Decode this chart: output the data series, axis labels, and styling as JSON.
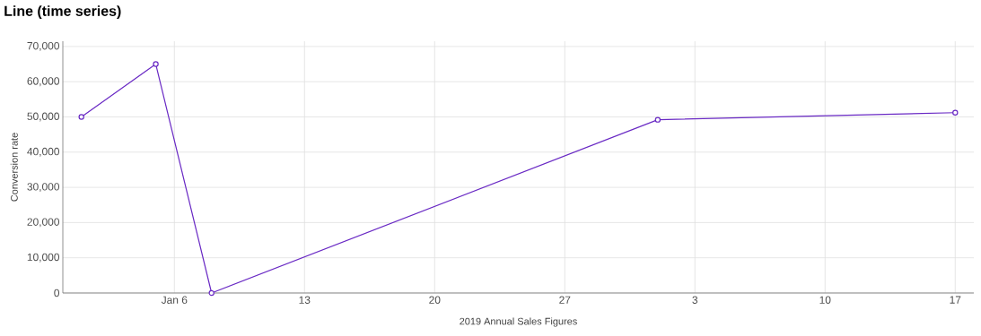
{
  "chart_data": {
    "type": "line",
    "title": "Line (time series)",
    "xlabel": "2019 Annual Sales Figures",
    "ylabel": "Conversion rate",
    "x": [
      "2019-01-01",
      "2019-01-05",
      "2019-01-08",
      "2019-02-01",
      "2019-02-17"
    ],
    "series": [
      {
        "color": "#6929c4",
        "values": [
          50000,
          65000,
          0,
          49200,
          51200
        ]
      }
    ],
    "xlim": [
      "2018-12-31",
      "2019-02-18"
    ],
    "xticks": [
      {
        "value": "2019-01-06",
        "label": "Jan 6"
      },
      {
        "value": "2019-01-13",
        "label": "13"
      },
      {
        "value": "2019-01-20",
        "label": "20"
      },
      {
        "value": "2019-01-27",
        "label": "27"
      },
      {
        "value": "2019-02-03",
        "label": "3"
      },
      {
        "value": "2019-02-10",
        "label": "10"
      },
      {
        "value": "2019-02-17",
        "label": "17"
      }
    ],
    "ylim": [
      0,
      71500
    ],
    "yticks": [
      {
        "value": 0,
        "label": "0"
      },
      {
        "value": 10000,
        "label": "10,000"
      },
      {
        "value": 20000,
        "label": "20,000"
      },
      {
        "value": 30000,
        "label": "30,000"
      },
      {
        "value": 40000,
        "label": "40,000"
      },
      {
        "value": 50000,
        "label": "50,000"
      },
      {
        "value": 60000,
        "label": "60,000"
      },
      {
        "value": 70000,
        "label": "70,000"
      }
    ],
    "grid": true,
    "legend": false,
    "marker": "circle",
    "line_style": "solid"
  }
}
